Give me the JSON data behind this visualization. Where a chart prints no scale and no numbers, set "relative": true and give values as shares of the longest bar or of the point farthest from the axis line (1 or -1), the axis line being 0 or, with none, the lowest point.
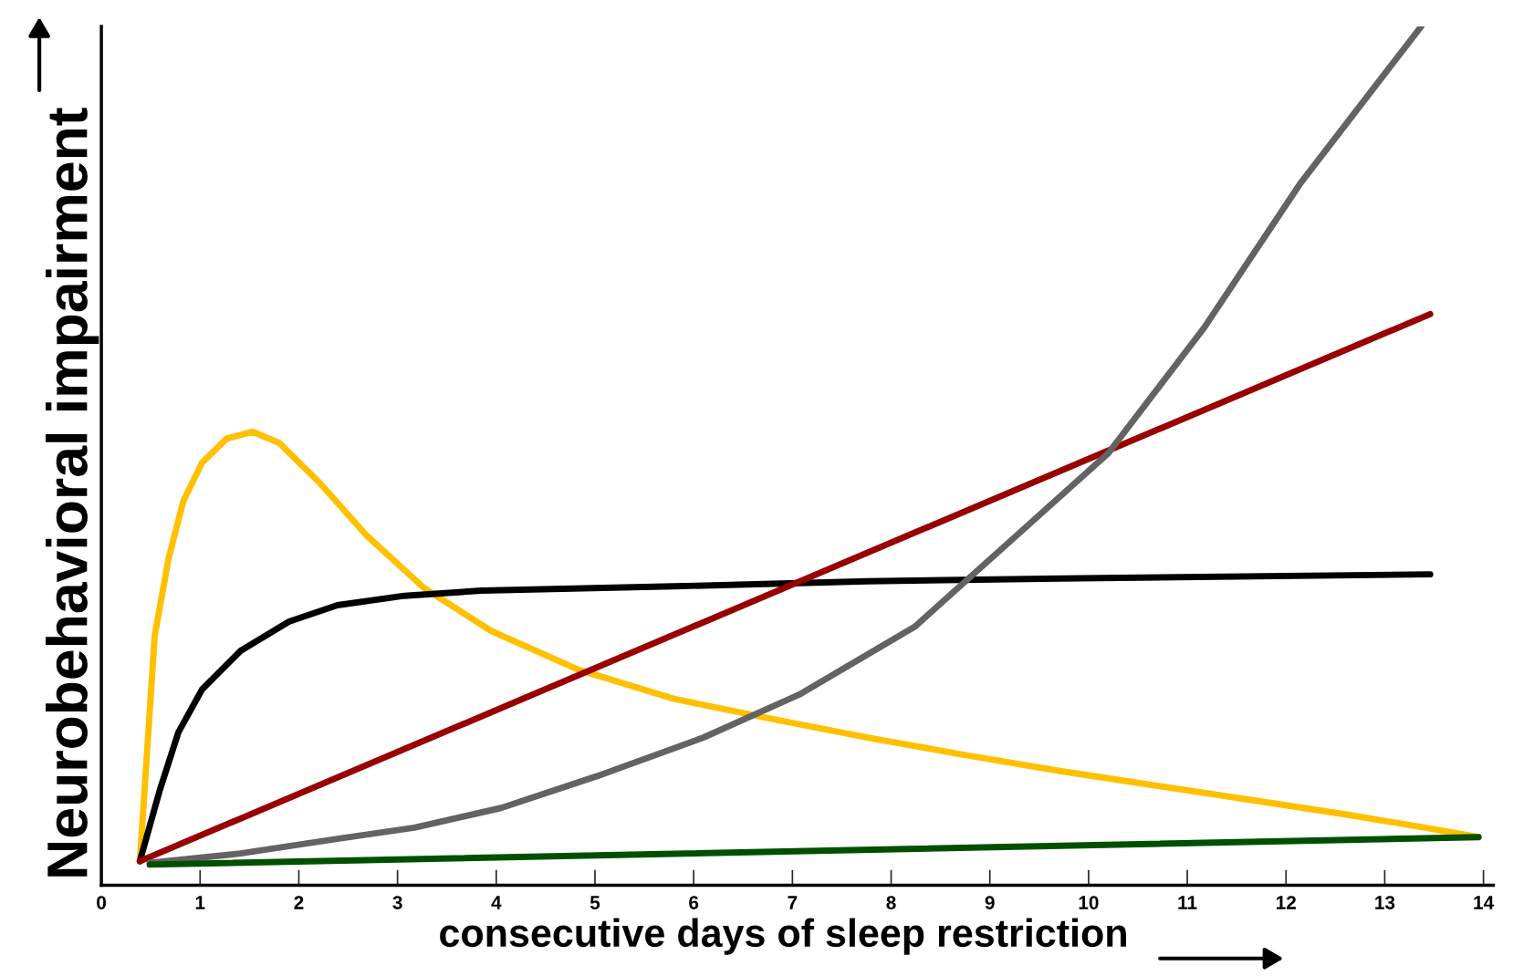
{
  "chart_data": {
    "type": "line",
    "relative": true,
    "xlabel": "consecutive days of sleep restriction",
    "ylabel": "Neurobehavioral impairment",
    "xlim": [
      0,
      14.1
    ],
    "xticks": [
      0,
      1,
      2,
      3,
      4,
      5,
      6,
      7,
      8,
      9,
      10,
      11,
      12,
      13,
      14
    ],
    "grid": false,
    "marker": "none",
    "line_style": "solid",
    "series": [
      {
        "color": "#ffc000",
        "x": [
          0.39,
          0.54,
          0.68,
          0.83,
          1.02,
          1.27,
          1.53,
          1.8,
          2.2,
          2.68,
          3.27,
          3.95,
          4.83,
          5.8,
          6.78,
          7.76,
          8.73,
          9.71,
          10.68,
          11.66,
          12.63,
          13.41,
          13.95
        ],
        "values": [
          0.028,
          0.29,
          0.38,
          0.447,
          0.492,
          0.52,
          0.528,
          0.515,
          0.47,
          0.408,
          0.346,
          0.296,
          0.251,
          0.217,
          0.194,
          0.172,
          0.152,
          0.133,
          0.116,
          0.099,
          0.082,
          0.067,
          0.056
        ]
      },
      {
        "color": "#000000",
        "x": [
          0.39,
          0.59,
          0.78,
          1.02,
          1.41,
          1.9,
          2.39,
          3.07,
          3.85,
          5.8,
          7.76,
          9.71,
          13.46
        ],
        "values": [
          0.028,
          0.11,
          0.178,
          0.228,
          0.273,
          0.307,
          0.326,
          0.337,
          0.343,
          0.348,
          0.354,
          0.357,
          0.362
        ]
      },
      {
        "color": "#990000",
        "x": [
          0.39,
          13.46
        ],
        "values": [
          0.028,
          0.665
        ]
      },
      {
        "color": "#636363",
        "x": [
          0.49,
          1.41,
          2.39,
          3.17,
          4.05,
          5.02,
          6.1,
          7.07,
          8.24,
          9.22,
          10.2,
          11.17,
          12.15,
          13.37
        ],
        "values": [
          0.026,
          0.037,
          0.054,
          0.067,
          0.09,
          0.127,
          0.172,
          0.222,
          0.301,
          0.402,
          0.503,
          0.649,
          0.818,
          1
        ]
      },
      {
        "color": "#005000",
        "x": [
          0.49,
          13.95
        ],
        "values": [
          0.024,
          0.056
        ]
      }
    ]
  }
}
